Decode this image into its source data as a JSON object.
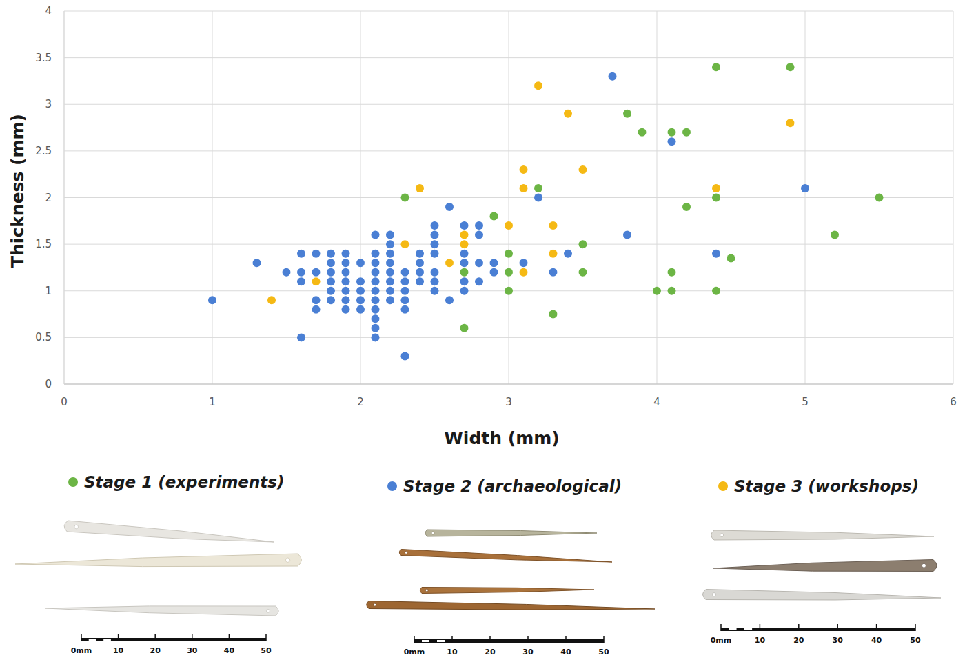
{
  "chart_data": {
    "type": "scatter",
    "x_label": "Width (mm)",
    "y_label": "Thickness (mm)",
    "xlim": [
      0,
      6
    ],
    "xticks": [
      0,
      1,
      2,
      3,
      4,
      5,
      6
    ],
    "ylim": [
      0,
      4
    ],
    "yticks": [
      0,
      0.5,
      1,
      1.5,
      2,
      2.5,
      3,
      3.5,
      4
    ],
    "grid": true,
    "legend": "bottom",
    "marker": "circle",
    "series": [
      {
        "name": "Stage 1 (experiments)",
        "color": "#6cb545",
        "x": [
          2.3,
          2.7,
          2.7,
          2.9,
          3.0,
          3.0,
          3.0,
          3.2,
          3.3,
          3.5,
          3.5,
          3.8,
          3.9,
          4.0,
          4.1,
          4.1,
          4.1,
          4.2,
          4.2,
          4.4,
          4.4,
          4.4,
          4.5,
          4.9,
          5.2,
          5.5
        ],
        "values": [
          2.0,
          1.2,
          0.6,
          1.8,
          1.4,
          1.2,
          1.0,
          2.1,
          0.75,
          1.5,
          1.2,
          2.9,
          2.7,
          1.0,
          2.7,
          1.2,
          1.0,
          2.7,
          1.9,
          3.4,
          2.0,
          1.0,
          1.35,
          3.4,
          1.6,
          2.0
        ]
      },
      {
        "name": "Stage 2 (archaeological)",
        "color": "#4a7fd4",
        "x": [
          1.0,
          1.3,
          1.5,
          1.6,
          1.6,
          1.6,
          1.6,
          1.7,
          1.7,
          1.7,
          1.7,
          1.8,
          1.8,
          1.8,
          1.8,
          1.8,
          1.8,
          1.9,
          1.9,
          1.9,
          1.9,
          1.9,
          1.9,
          1.9,
          2.0,
          2.0,
          2.0,
          2.0,
          2.0,
          2.1,
          2.1,
          2.1,
          2.1,
          2.1,
          2.1,
          2.1,
          2.1,
          2.1,
          2.1,
          2.1,
          2.2,
          2.2,
          2.2,
          2.2,
          2.2,
          2.2,
          2.2,
          2.2,
          2.3,
          2.3,
          2.3,
          2.3,
          2.3,
          2.3,
          2.4,
          2.4,
          2.4,
          2.4,
          2.5,
          2.5,
          2.5,
          2.5,
          2.5,
          2.5,
          2.5,
          2.6,
          2.6,
          2.7,
          2.7,
          2.7,
          2.7,
          2.7,
          2.8,
          2.8,
          2.8,
          2.8,
          2.9,
          2.9,
          3.1,
          3.2,
          3.3,
          3.4,
          3.7,
          3.8,
          4.1,
          4.4,
          5.0
        ],
        "values": [
          0.9,
          1.3,
          1.2,
          1.4,
          1.2,
          1.1,
          0.5,
          1.4,
          1.2,
          0.9,
          0.8,
          1.4,
          1.3,
          1.2,
          1.1,
          1.0,
          0.9,
          1.4,
          1.3,
          1.2,
          1.1,
          1.0,
          0.9,
          0.8,
          1.3,
          1.1,
          1.0,
          0.9,
          0.8,
          1.6,
          1.4,
          1.3,
          1.2,
          1.1,
          1.0,
          0.9,
          0.8,
          0.7,
          0.6,
          0.5,
          1.6,
          1.5,
          1.4,
          1.3,
          1.2,
          1.1,
          1.0,
          0.9,
          1.2,
          1.1,
          1.0,
          0.9,
          0.8,
          0.3,
          1.4,
          1.3,
          1.2,
          1.1,
          1.7,
          1.6,
          1.5,
          1.4,
          1.2,
          1.1,
          1.0,
          1.9,
          0.9,
          1.7,
          1.4,
          1.3,
          1.1,
          1.0,
          1.7,
          1.6,
          1.3,
          1.1,
          1.3,
          1.2,
          1.3,
          2.0,
          1.2,
          1.4,
          3.3,
          1.6,
          2.6,
          1.4,
          2.1
        ]
      },
      {
        "name": "Stage 3 (workshops)",
        "color": "#f5b914",
        "x": [
          1.4,
          1.7,
          2.3,
          2.4,
          2.6,
          2.7,
          2.7,
          3.0,
          3.1,
          3.1,
          3.1,
          3.2,
          3.3,
          3.3,
          3.4,
          3.5,
          4.4,
          4.9
        ],
        "values": [
          0.9,
          1.1,
          1.5,
          2.1,
          1.3,
          1.6,
          1.5,
          1.7,
          2.3,
          2.1,
          1.2,
          3.2,
          1.7,
          1.4,
          2.9,
          2.3,
          2.1,
          2.8
        ]
      }
    ]
  },
  "scale_bar_labels": [
    "0mm",
    "10",
    "20",
    "30",
    "40",
    "50"
  ]
}
